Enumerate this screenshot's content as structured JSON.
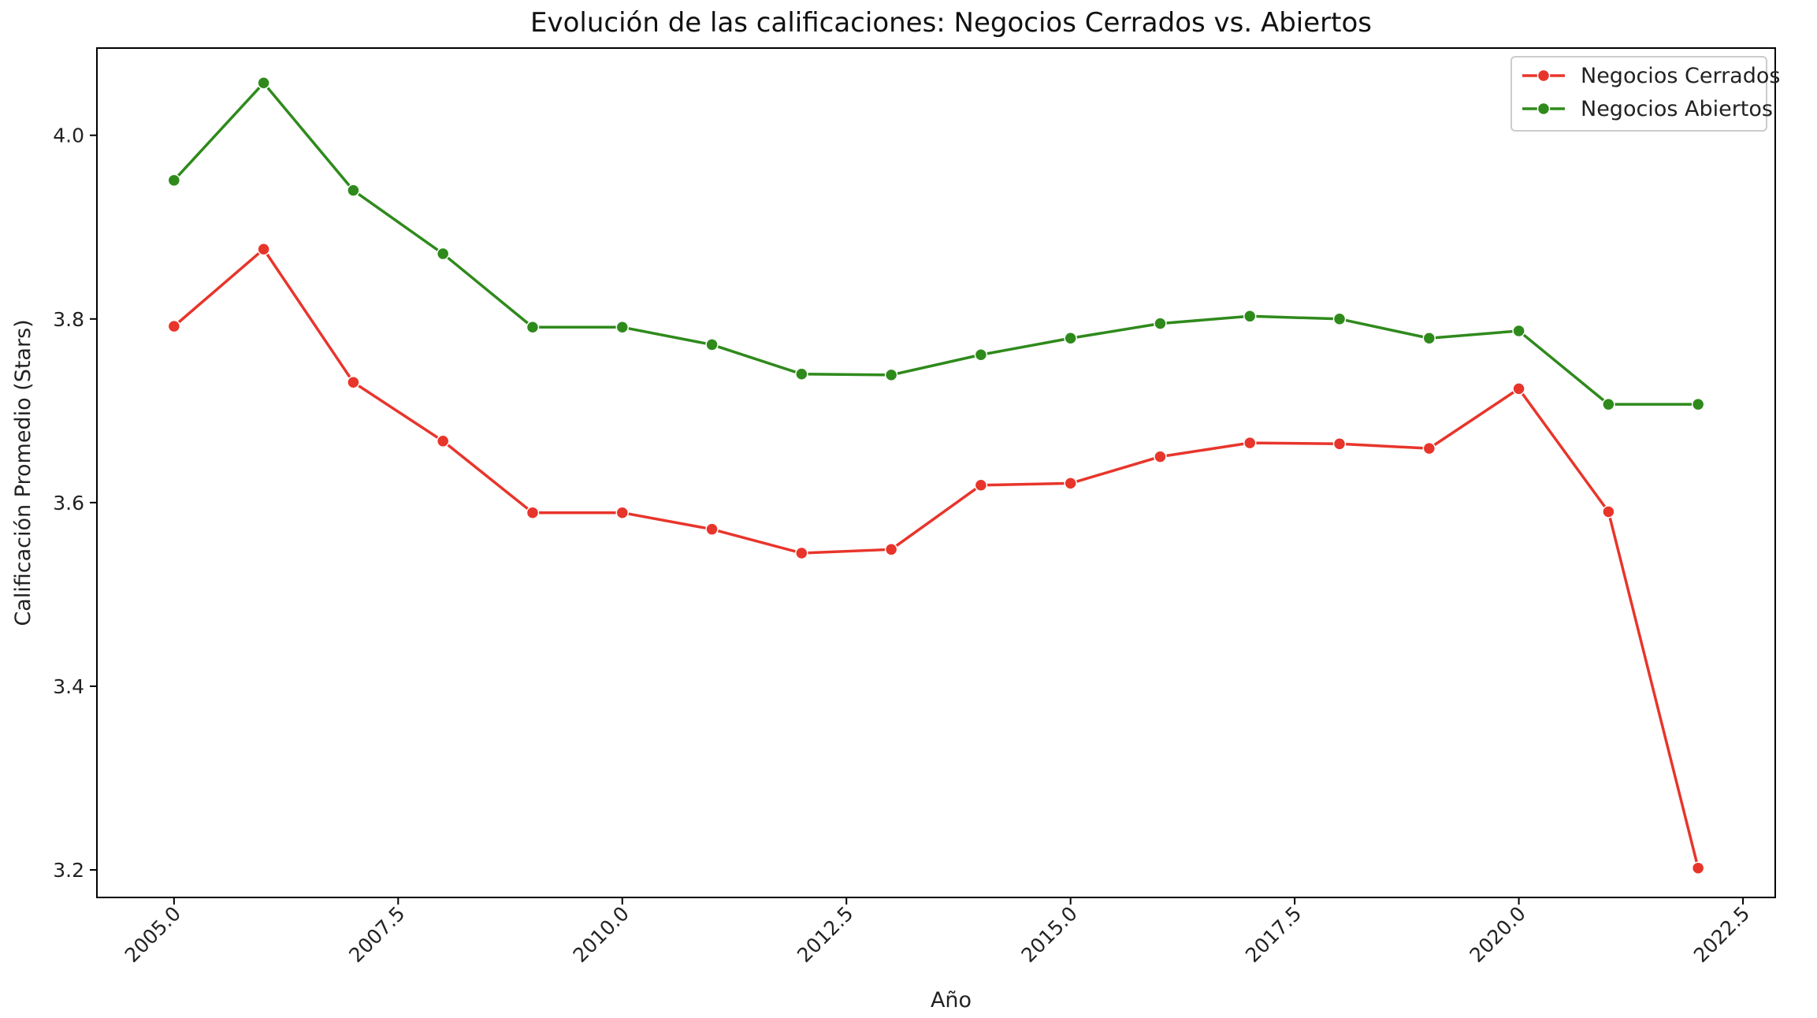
{
  "chart_data": {
    "type": "line",
    "title": "Evolución de las calificaciones: Negocios Cerrados vs. Abiertos",
    "xlabel": "Año",
    "ylabel": "Calificación Promedio (Stars)",
    "xlim": [
      2004.14,
      2022.86
    ],
    "ylim": [
      3.17,
      4.095
    ],
    "xticks": [
      "2005.0",
      "2007.5",
      "2010.0",
      "2012.5",
      "2015.0",
      "2017.5",
      "2020.0",
      "2022.5"
    ],
    "yticks": [
      "3.2",
      "3.4",
      "3.6",
      "3.8",
      "4.0"
    ],
    "grid": false,
    "legend_position": "upper right",
    "x": [
      2005,
      2006,
      2007,
      2008,
      2009,
      2010,
      2011,
      2012,
      2013,
      2014,
      2015,
      2016,
      2017,
      2018,
      2019,
      2020,
      2021,
      2022
    ],
    "series": [
      {
        "name": "Negocios Cerrados",
        "color": "#e8352b",
        "values": [
          3.792,
          3.876,
          3.731,
          3.667,
          3.589,
          3.589,
          3.571,
          3.545,
          3.549,
          3.619,
          3.621,
          3.65,
          3.665,
          3.664,
          3.659,
          3.724,
          3.59,
          3.202
        ]
      },
      {
        "name": "Negocios Abiertos",
        "color": "#2f8a1c",
        "values": [
          3.951,
          4.057,
          3.94,
          3.871,
          3.791,
          3.791,
          3.772,
          3.74,
          3.739,
          3.761,
          3.779,
          3.795,
          3.803,
          3.8,
          3.779,
          3.787,
          3.707,
          3.707
        ]
      }
    ]
  }
}
